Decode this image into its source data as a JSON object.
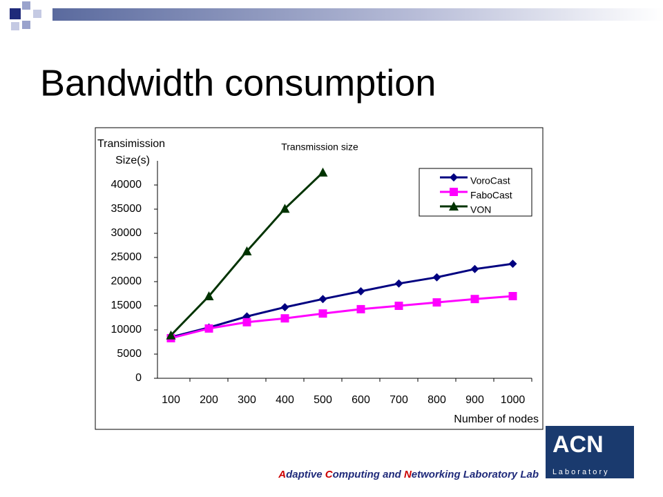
{
  "slide": {
    "title": "Bandwidth consumption",
    "footer": [
      "A",
      "daptive ",
      "C",
      "omputing and ",
      "N",
      "etworking Laboratory Lab"
    ],
    "logo": {
      "name": "ACN",
      "subtitle": "L a b o r a t o r y"
    }
  },
  "chart_data": {
    "type": "line",
    "title": "Transmission size",
    "ylabel": [
      "Transimission",
      "Size(s)"
    ],
    "xlabel": "Number of nodes",
    "categories": [
      "100",
      "200",
      "300",
      "400",
      "500",
      "600",
      "700",
      "800",
      "900",
      "1000"
    ],
    "series": [
      {
        "name": "VoroCast",
        "color": "#000080",
        "marker": "diamond",
        "values": [
          8500,
          10500,
          12800,
          14700,
          16400,
          18000,
          19600,
          20900,
          22600,
          23700
        ]
      },
      {
        "name": "FaboCast",
        "color": "#ff00ff",
        "marker": "square",
        "values": [
          8300,
          10300,
          11600,
          12400,
          13400,
          14300,
          15000,
          15700,
          16400,
          17000
        ]
      },
      {
        "name": "VON",
        "color": "#003300",
        "marker": "triangle",
        "values": [
          8900,
          17000,
          26300,
          35100,
          42600,
          null,
          null,
          null,
          null,
          null
        ]
      }
    ],
    "ylim": [
      0,
      45000
    ],
    "yticks": [
      0,
      5000,
      10000,
      15000,
      20000,
      25000,
      30000,
      35000,
      40000
    ],
    "legend": "upper right",
    "grid": false
  }
}
